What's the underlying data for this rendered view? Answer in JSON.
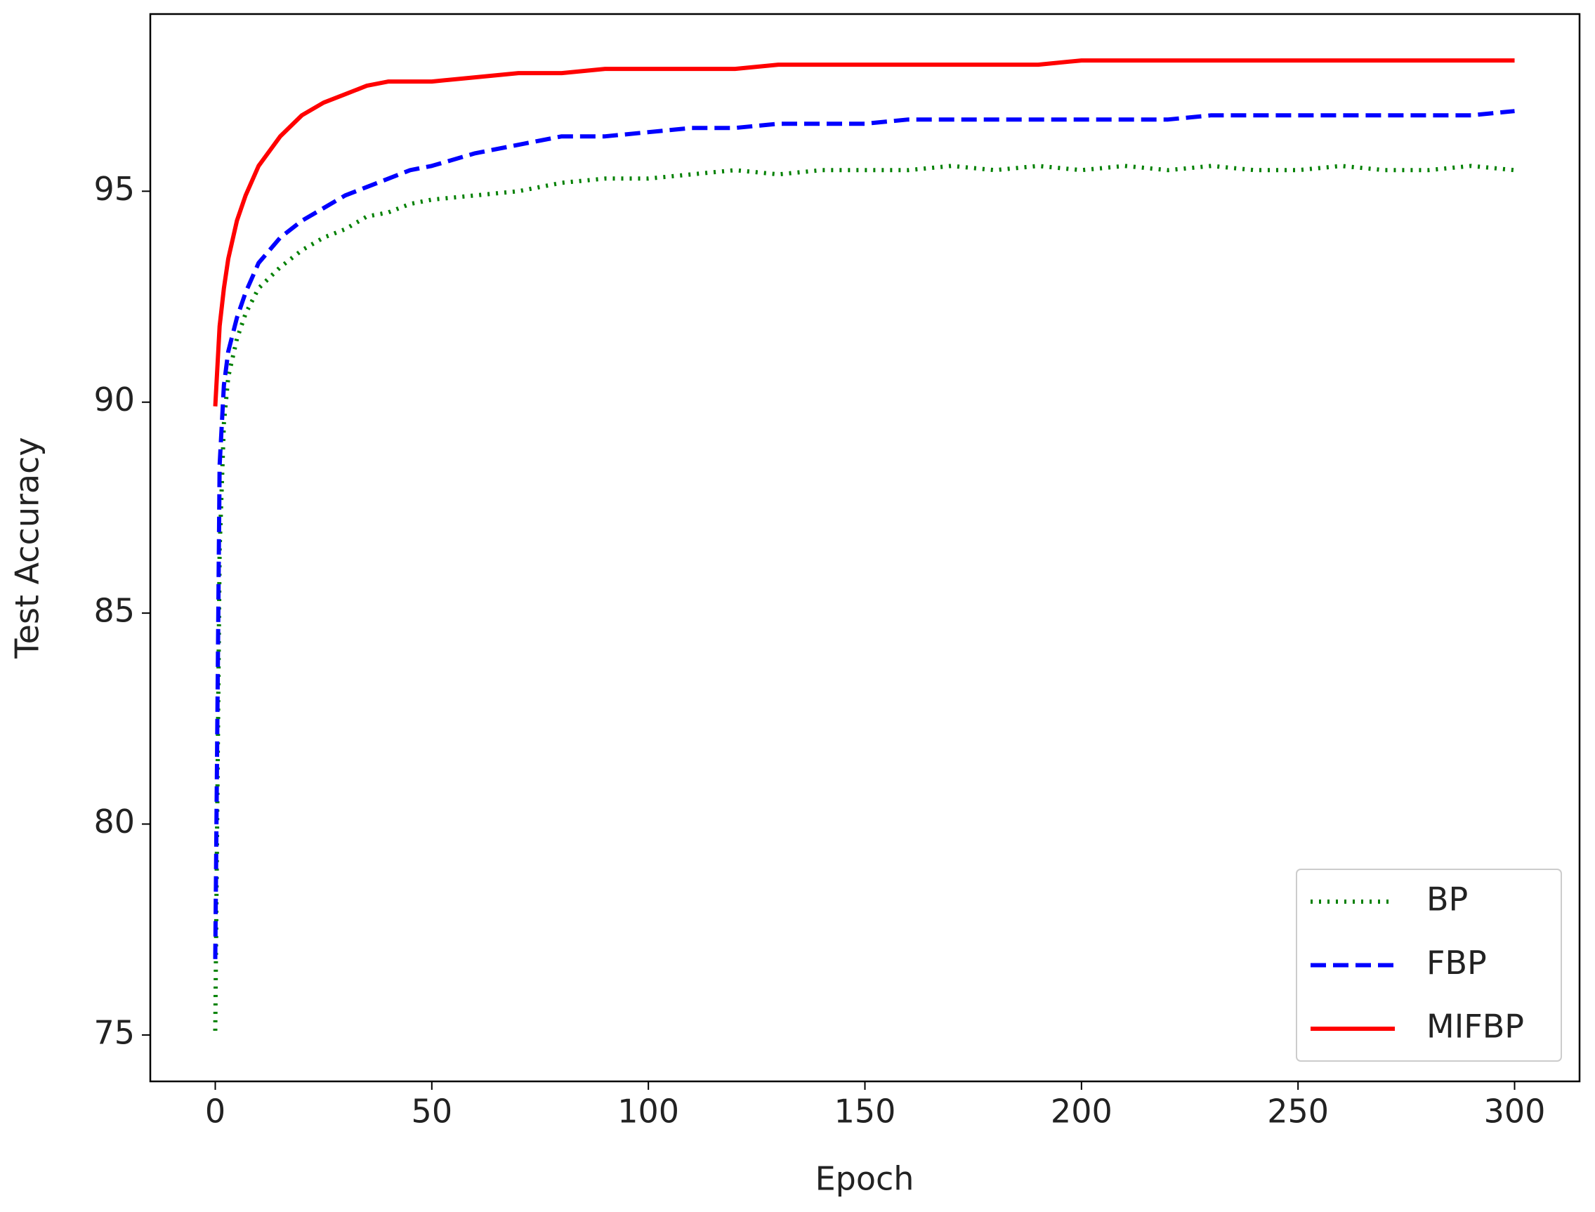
{
  "chart_data": {
    "type": "line",
    "x_label": "Epoch",
    "y_label": "Test Accuracy",
    "x": [
      0,
      1,
      2,
      3,
      5,
      7,
      10,
      15,
      20,
      25,
      30,
      35,
      40,
      45,
      50,
      60,
      70,
      80,
      90,
      100,
      110,
      120,
      130,
      140,
      150,
      160,
      170,
      180,
      190,
      200,
      210,
      220,
      230,
      240,
      250,
      260,
      270,
      280,
      290,
      300
    ],
    "series": [
      {
        "name": "BP",
        "color": "#008000",
        "style": "dotted",
        "values": [
          75.1,
          86.5,
          89.5,
          90.6,
          91.5,
          92.1,
          92.7,
          93.2,
          93.6,
          93.9,
          94.1,
          94.4,
          94.5,
          94.7,
          94.8,
          94.9,
          95.0,
          95.2,
          95.3,
          95.3,
          95.4,
          95.5,
          95.4,
          95.5,
          95.5,
          95.5,
          95.6,
          95.5,
          95.6,
          95.5,
          95.6,
          95.5,
          95.6,
          95.5,
          95.5,
          95.6,
          95.5,
          95.5,
          95.6,
          95.5
        ]
      },
      {
        "name": "FBP",
        "color": "#0000ff",
        "style": "dashed",
        "values": [
          76.8,
          88.5,
          90.4,
          91.2,
          92.0,
          92.6,
          93.3,
          93.9,
          94.3,
          94.6,
          94.9,
          95.1,
          95.3,
          95.5,
          95.6,
          95.9,
          96.1,
          96.3,
          96.3,
          96.4,
          96.5,
          96.5,
          96.6,
          96.6,
          96.6,
          96.7,
          96.7,
          96.7,
          96.7,
          96.7,
          96.7,
          96.7,
          96.8,
          96.8,
          96.8,
          96.8,
          96.8,
          96.8,
          96.8,
          96.9
        ]
      },
      {
        "name": "MIFBP",
        "color": "#ff0000",
        "style": "solid",
        "values": [
          89.9,
          91.8,
          92.7,
          93.4,
          94.3,
          94.9,
          95.6,
          96.3,
          96.8,
          97.1,
          97.3,
          97.5,
          97.6,
          97.6,
          97.6,
          97.7,
          97.8,
          97.8,
          97.9,
          97.9,
          97.9,
          97.9,
          98.0,
          98.0,
          98.0,
          98.0,
          98.0,
          98.0,
          98.0,
          98.1,
          98.1,
          98.1,
          98.1,
          98.1,
          98.1,
          98.1,
          98.1,
          98.1,
          98.1,
          98.1
        ]
      }
    ],
    "xlim": [
      -15,
      315
    ],
    "ylim": [
      73.9,
      99.2
    ],
    "xticks": [
      0,
      50,
      100,
      150,
      200,
      250,
      300
    ],
    "yticks": [
      75,
      80,
      85,
      90,
      95
    ],
    "grid": false,
    "legend": "lower right"
  }
}
